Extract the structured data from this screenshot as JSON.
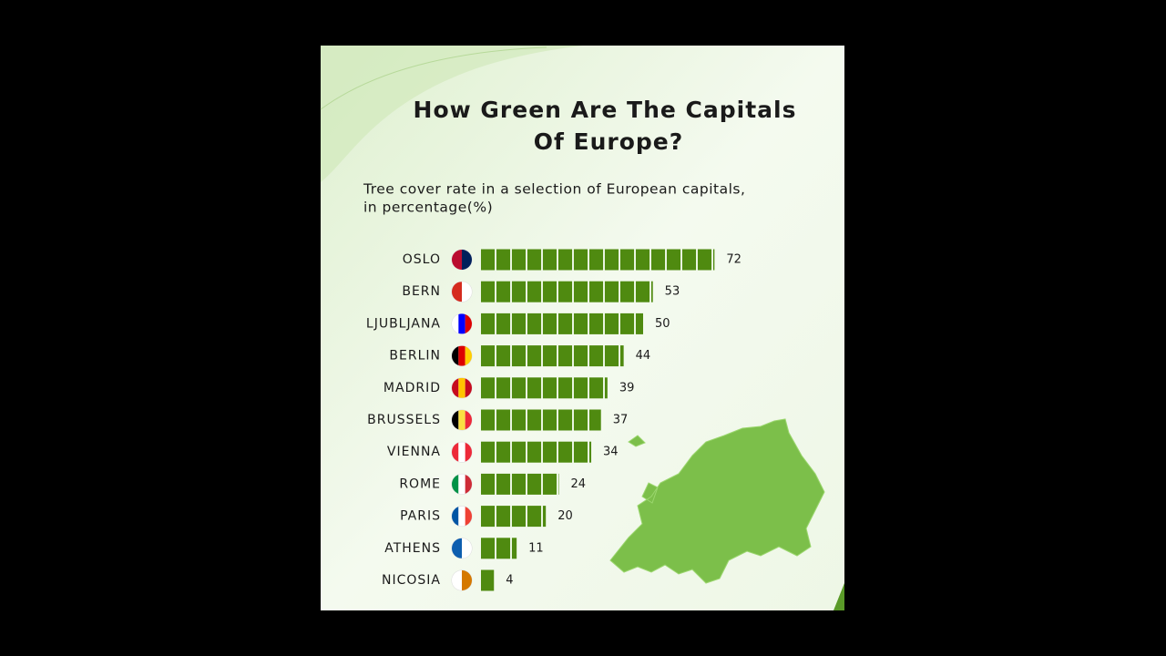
{
  "chart_data": {
    "type": "bar",
    "title": [
      "How Green Are The Capitals",
      "Of Europe?"
    ],
    "subtitle": [
      "Tree cover rate in a selection of European capitals,",
      "in percentage(%)"
    ],
    "categories": [
      "OSLO",
      "BERN",
      "LJUBLJANA",
      "BERLIN",
      "MADRID",
      "BRUSSELS",
      "VIENNA",
      "ROME",
      "PARIS",
      "ATHENS",
      "NICOSIA"
    ],
    "values": [
      72,
      53,
      50,
      44,
      39,
      37,
      34,
      24,
      20,
      11,
      4
    ],
    "color": "#4f8a10"
  }
}
